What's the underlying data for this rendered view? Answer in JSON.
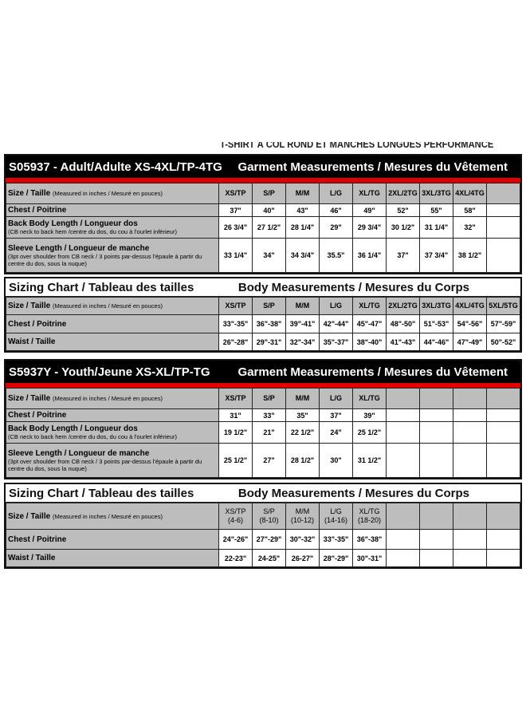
{
  "top_heading": "T-SHIRT À COL ROND ET MANCHES LONGUES PERFORMANCE",
  "colors": {
    "header_black": "#000000",
    "stripe_red": "#e00000",
    "label_gray": "#bdbdbd"
  },
  "tables": [
    {
      "style": "garment",
      "title": "S05937 - Adult/Adulte XS-4XL/TP-4TG",
      "subtitle": "Garment Measurements / Mesures du Vêtement",
      "size_label": "Size / Taille",
      "size_note": "(Measured in inches / Mesuré en pouces)",
      "sizes": [
        "XS/TP",
        "S/P",
        "M/M",
        "L/G",
        "XL/TG",
        "2XL/2TG",
        "3XL/3TG",
        "4XL/4TG",
        ""
      ],
      "rows": [
        {
          "label": "Chest / Poitrine",
          "note": "",
          "values": [
            "37\"",
            "40\"",
            "43\"",
            "46\"",
            "49\"",
            "52\"",
            "55\"",
            "58\"",
            ""
          ]
        },
        {
          "label": "Back Body Length / Longueur dos",
          "note": "(CB neck to back hem /centre du dos, du cou à l'ourlet inférieur)",
          "values": [
            "26 3/4\"",
            "27 1/2\"",
            "28 1/4\"",
            "29\"",
            "29 3/4\"",
            "30 1/2\"",
            "31 1/4\"",
            "32\"",
            ""
          ]
        },
        {
          "label": "Sleeve Length / Longueur de manche",
          "note": "(3pt over shoulder from CB neck / 3 points par-dessus l'épaule à partir du centre du dos, sous la nuque)",
          "values": [
            "33 1/4\"",
            "34\"",
            "34 3/4\"",
            "35.5\"",
            "36 1/4\"",
            "37\"",
            "37 3/4\"",
            "38 1/2\"",
            ""
          ]
        }
      ]
    },
    {
      "style": "body",
      "title": "Sizing Chart / Tableau des tailles",
      "subtitle": "Body Measurements / Mesures du Corps",
      "size_label": "Size / Taille",
      "size_note": "(Measured in inches / Mesuré en pouces)",
      "sizes": [
        "XS/TP",
        "S/P",
        "M/M",
        "L/G",
        "XL/TG",
        "2XL/2TG",
        "3XL/3TG",
        "4XL/4TG",
        "5XL/5TG"
      ],
      "rows": [
        {
          "label": "Chest / Poitrine",
          "note": "",
          "values": [
            "33\"-35\"",
            "36\"-38\"",
            "39\"-41\"",
            "42\"-44\"",
            "45\"-47\"",
            "48\"-50\"",
            "51\"-53\"",
            "54\"-56\"",
            "57\"-59\""
          ]
        },
        {
          "label": "Waist / Taille",
          "note": "",
          "values": [
            "26\"-28\"",
            "29\"-31\"",
            "32\"-34\"",
            "35\"-37\"",
            "38\"-40\"",
            "41\"-43\"",
            "44\"-46\"",
            "47\"-49\"",
            "50\"-52\""
          ]
        }
      ]
    },
    {
      "style": "garment",
      "title": "S5937Y - Youth/Jeune XS-XL/TP-TG",
      "subtitle": "Garment Measurements / Mesures du Vêtement",
      "size_label": "Size / Taille",
      "size_note": "(Measured in inches / Mesuré en pouces)",
      "sizes": [
        "XS/TP",
        "S/P",
        "M/M",
        "L/G",
        "XL/TG",
        "",
        "",
        "",
        ""
      ],
      "rows": [
        {
          "label": "Chest / Poitrine",
          "note": "",
          "values": [
            "31\"",
            "33\"",
            "35\"",
            "37\"",
            "39\"",
            "",
            "",
            "",
            ""
          ]
        },
        {
          "label": "Back Body Length / Longueur dos",
          "note": "(CB neck to back hem /centre du dos, du cou à l'ourlet inférieur)",
          "values": [
            "19 1/2\"",
            "21\"",
            "22 1/2\"",
            "24\"",
            "25 1/2\"",
            "",
            "",
            "",
            ""
          ]
        },
        {
          "label": "Sleeve Length / Longueur de manche",
          "note": "(3pt over shoulder from CB neck / 3 points par-dessus l'épaule à partir du centre du dos, sous la nuque)",
          "values": [
            "25 1/2\"",
            "27\"",
            "28 1/2\"",
            "30\"",
            "31 1/2\"",
            "",
            "",
            "",
            ""
          ]
        }
      ]
    },
    {
      "style": "body",
      "title": "Sizing Chart / Tableau des tailles",
      "subtitle": "Body Measurements / Mesures du Corps",
      "size_label": "Size / Taille",
      "size_note": "(Measured in inches / Mesuré en pouces)",
      "sizes": [
        "XS/TP (4-6)",
        "S/P (8-10)",
        "M/M (10-12)",
        "L/G (14-16)",
        "XL/TG (18-20)",
        "",
        "",
        "",
        ""
      ],
      "rows": [
        {
          "label": "Chest / Poitrine",
          "note": "",
          "values": [
            "24\"-26\"",
            "27\"-29\"",
            "30\"-32\"",
            "33\"-35\"",
            "36\"-38\"",
            "",
            "",
            "",
            ""
          ]
        },
        {
          "label": "Waist / Taille",
          "note": "",
          "values": [
            "22-23\"",
            "24-25\"",
            "26-27\"",
            "28\"-29\"",
            "30\"-31\"",
            "",
            "",
            "",
            ""
          ]
        }
      ]
    }
  ]
}
